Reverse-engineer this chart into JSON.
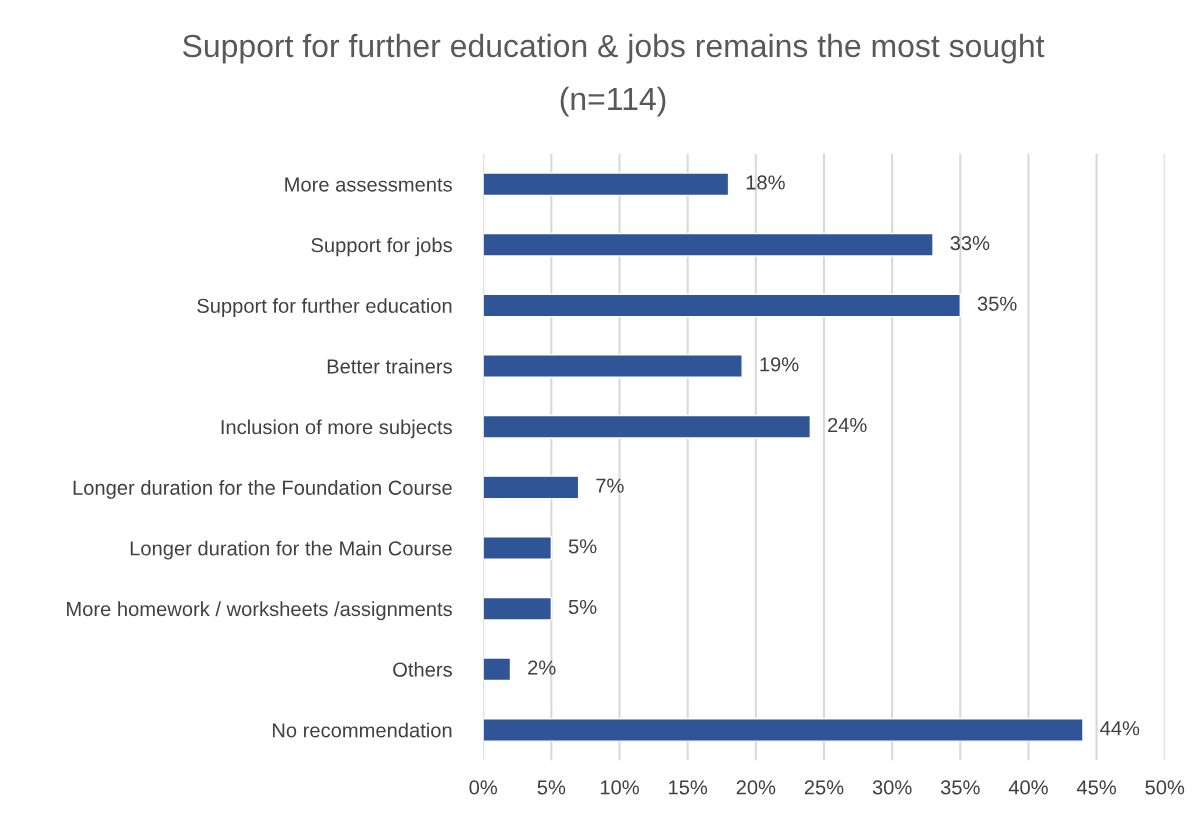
{
  "chart_data": {
    "type": "bar",
    "orientation": "horizontal",
    "title": "Support for further education & jobs remains the most sought",
    "subtitle": "(n=114)",
    "categories": [
      "More assessments",
      "Support for jobs",
      "Support for further education",
      "Better trainers",
      "Inclusion of more subjects",
      "Longer duration for the Foundation Course",
      "Longer duration for the Main Course",
      "More homework / worksheets /assignments",
      "Others",
      "No recommendation"
    ],
    "values": [
      18,
      33,
      35,
      19,
      24,
      7,
      5,
      5,
      2,
      44
    ],
    "value_labels": [
      "18%",
      "33%",
      "35%",
      "19%",
      "24%",
      "7%",
      "5%",
      "5%",
      "2%",
      "44%"
    ],
    "color": "#2f5597",
    "xlim": [
      0,
      50
    ],
    "xticks": [
      {
        "value": 0,
        "label": "0%"
      },
      {
        "value": 5,
        "label": "5%"
      },
      {
        "value": 10,
        "label": "10%"
      },
      {
        "value": 15,
        "label": "15%"
      },
      {
        "value": 20,
        "label": "20%"
      },
      {
        "value": 25,
        "label": "25%"
      },
      {
        "value": 30,
        "label": "30%"
      },
      {
        "value": 35,
        "label": "35%"
      },
      {
        "value": 40,
        "label": "40%"
      },
      {
        "value": 45,
        "label": "45%"
      },
      {
        "value": 50,
        "label": "50%"
      }
    ],
    "grid": "x"
  }
}
